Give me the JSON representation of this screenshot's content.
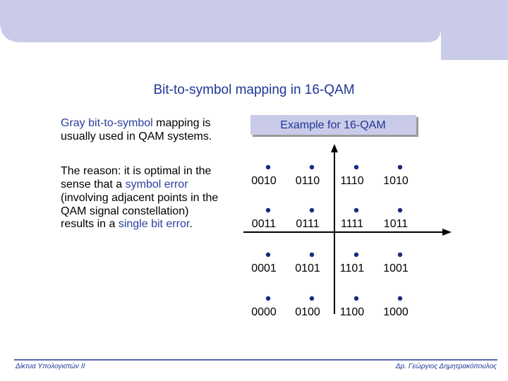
{
  "header": {
    "title": "Bit-to-symbol mapping in 16-QAM"
  },
  "left_text": {
    "paragraphs": [
      [
        {
          "text": "Gray bit-to-symbol",
          "color": "#2a3f9e"
        },
        {
          "text": " mapping is usually used in QAM systems.",
          "color": "#000000"
        }
      ],
      [
        {
          "text": "The reason: it is optimal in the sense that a ",
          "color": "#000000"
        },
        {
          "text": "symbol error",
          "color": "#2a3f9e"
        },
        {
          "text": " (involving adjacent points in the QAM signal constellation) results in a ",
          "color": "#000000"
        },
        {
          "text": "single bit error",
          "color": "#2a3f9e"
        },
        {
          "text": ".",
          "color": "#000000"
        }
      ]
    ]
  },
  "example_box": {
    "label": "Example for 16-QAM"
  },
  "constellation": {
    "rows": [
      [
        "0010",
        "0110",
        "1110",
        "1010"
      ],
      [
        "0011",
        "0111",
        "1111",
        "1011"
      ],
      [
        "0001",
        "0101",
        "1101",
        "1001"
      ],
      [
        "0000",
        "0100",
        "1100",
        "1000"
      ]
    ]
  },
  "footer": {
    "left": "Δίκτυα Υπολογιστών II",
    "right": "Δρ. Γεώργιος Δημητρακόπουλος"
  }
}
